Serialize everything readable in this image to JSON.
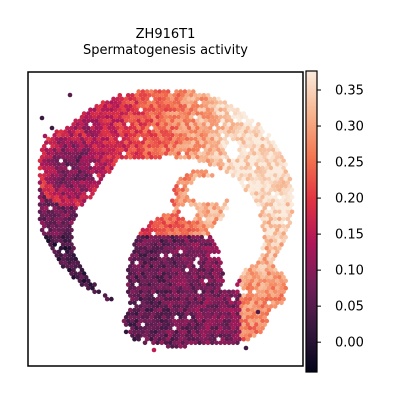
{
  "chart_data": {
    "type": "scatter",
    "title": "ZH916T1",
    "subtitle": "Spermatogenesis activity",
    "xlabel": "",
    "ylabel": "",
    "grid": false,
    "legend": "none",
    "colormap": "rocket",
    "colorbar": {
      "position": "right",
      "vmin": -0.04,
      "vmax": 0.375,
      "ticks": [
        0.0,
        0.05,
        0.1,
        0.15,
        0.2,
        0.25,
        0.3,
        0.35
      ],
      "tick_labels": [
        "0.00",
        "0.05",
        "0.10",
        "0.15",
        "0.20",
        "0.25",
        "0.30",
        "0.35"
      ]
    },
    "colormap_stops": [
      "#03051a",
      "#36193e",
      "#701f57",
      "#ae1759",
      "#e13342",
      "#f37651",
      "#f6b48e",
      "#faebdd"
    ],
    "spot_summary": "hexagonal spatial transcriptomics spots; high activity (0.25-0.35) along upper-right arc, low activity (0.00-0.10) in lower-center cluster and left lobe core"
  }
}
